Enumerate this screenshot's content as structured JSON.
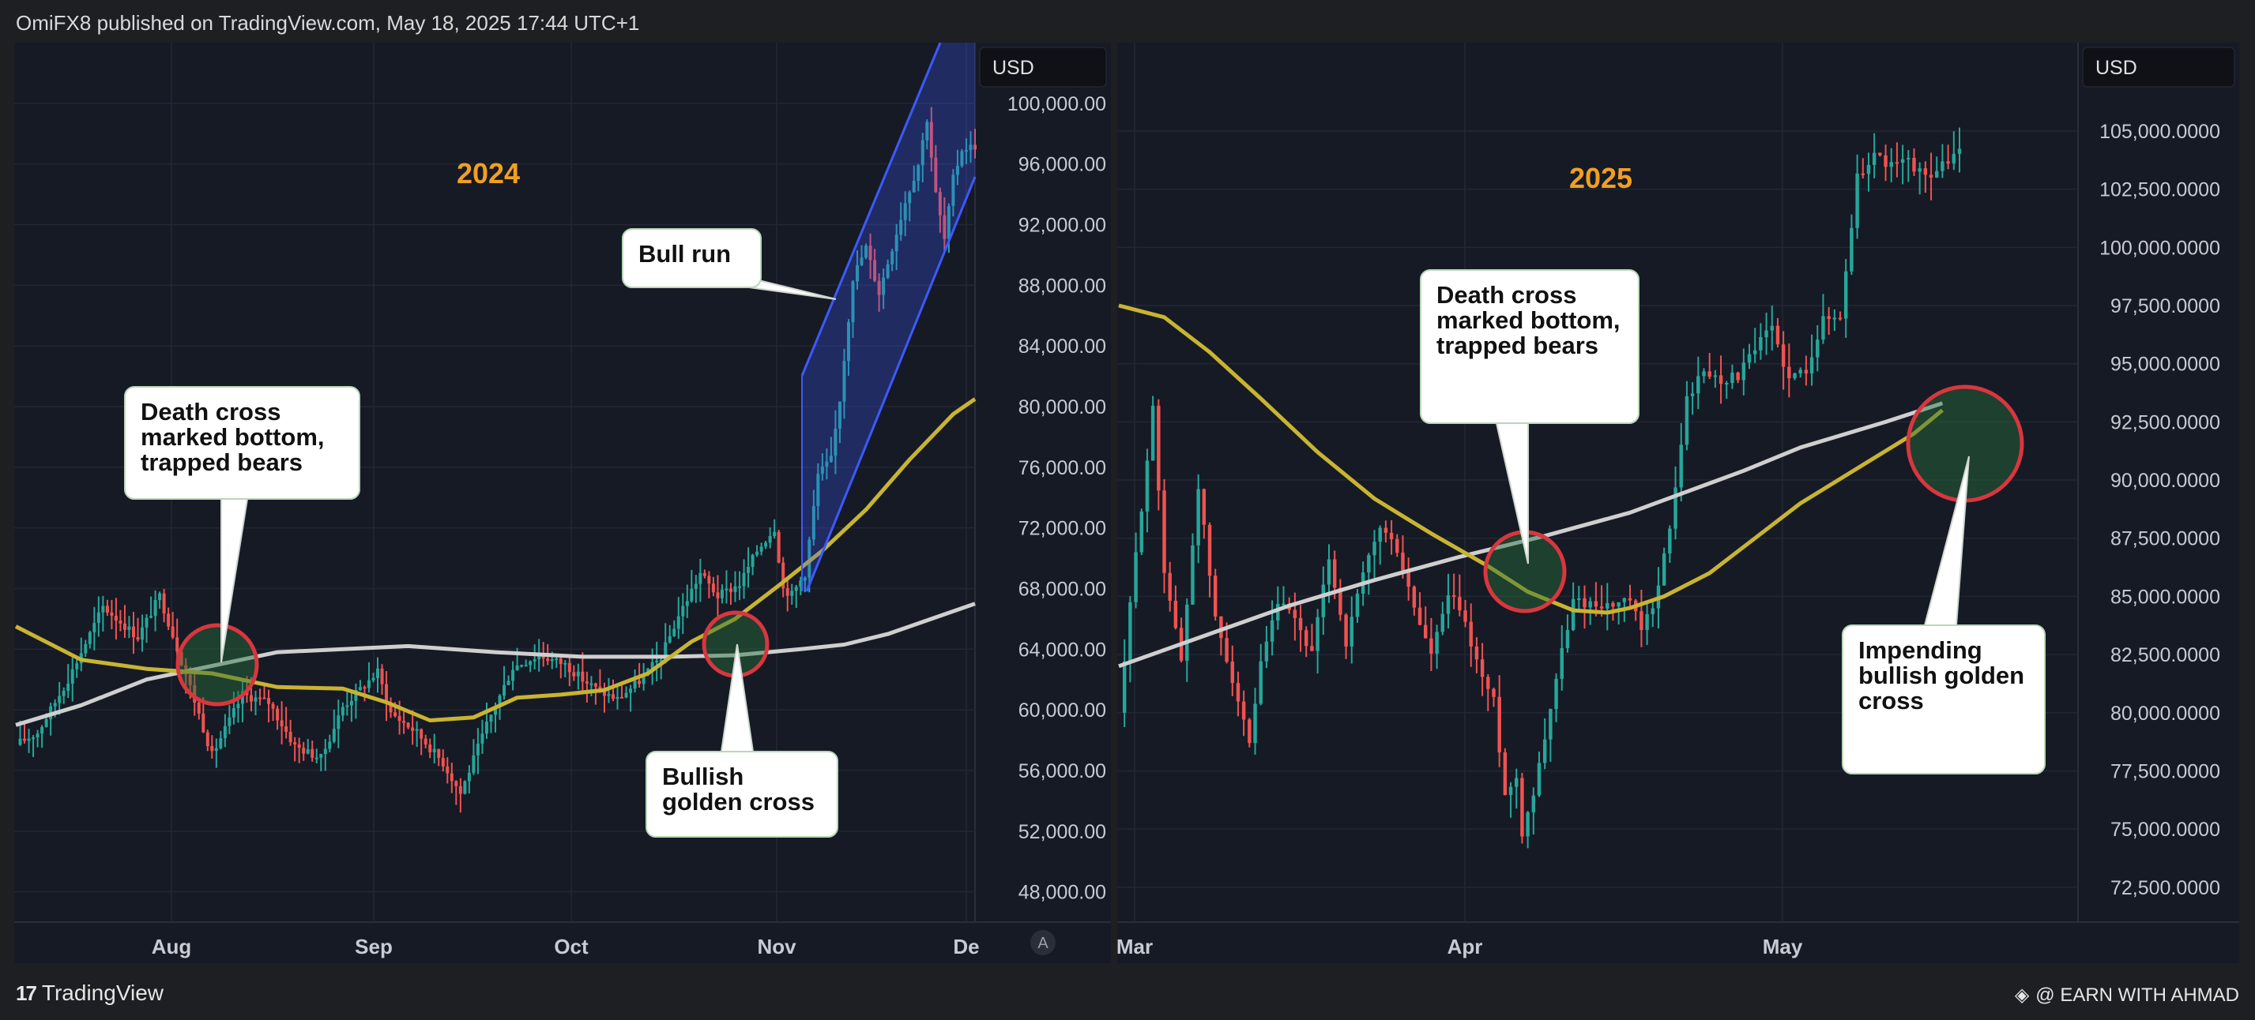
{
  "header": {
    "text": "OmiFX8 published on TradingView.com, May 18, 2025 17:44 UTC+1"
  },
  "footer": {
    "logo_text": "TradingView",
    "credit": "@ EARN WITH AHMAD"
  },
  "colors": {
    "bg": "#1e1f22",
    "plot_bg": "#161a25",
    "up": "#26a69a",
    "down": "#ef5350",
    "ma50": "#c8b432",
    "ma200": "#cfcfcf",
    "year": "#f0a020",
    "channel": "#3d5afe",
    "circle": "#d9363e"
  },
  "chart_data": [
    {
      "type": "candlestick",
      "year_label": "2024",
      "currency": "USD",
      "y_ticks": [
        "48,000.00",
        "52,000.00",
        "56,000.00",
        "60,000.00",
        "64,000.00",
        "68,000.00",
        "72,000.00",
        "76,000.00",
        "80,000.00",
        "84,000.00",
        "88,000.00",
        "92,000.00",
        "96,000.00",
        "100,000.00"
      ],
      "ylim": [
        46000,
        104000
      ],
      "x_ticks": [
        "Aug",
        "Sep",
        "Oct",
        "Nov",
        "De"
      ],
      "scale_button": "A",
      "close_path": [
        [
          0,
          57700
        ],
        [
          5,
          58500
        ],
        [
          12,
          62000
        ],
        [
          20,
          66800
        ],
        [
          28,
          64800
        ],
        [
          33,
          67500
        ],
        [
          40,
          61500
        ],
        [
          45,
          57000
        ],
        [
          52,
          61000
        ],
        [
          58,
          60500
        ],
        [
          64,
          57600
        ],
        [
          70,
          56800
        ],
        [
          75,
          60200
        ],
        [
          83,
          62500
        ],
        [
          86,
          59800
        ],
        [
          92,
          58500
        ],
        [
          98,
          56500
        ],
        [
          102,
          54500
        ],
        [
          108,
          59000
        ],
        [
          114,
          62800
        ],
        [
          120,
          63600
        ],
        [
          126,
          63000
        ],
        [
          130,
          62000
        ],
        [
          134,
          61200
        ],
        [
          138,
          60700
        ],
        [
          143,
          61900
        ],
        [
          148,
          63500
        ],
        [
          152,
          66200
        ],
        [
          157,
          69000
        ],
        [
          161,
          67500
        ],
        [
          166,
          68300
        ],
        [
          170,
          70500
        ],
        [
          174,
          72000
        ],
        [
          176,
          68000
        ],
        [
          178,
          67600
        ],
        [
          181,
          69000
        ],
        [
          184,
          75500
        ],
        [
          187,
          76500
        ],
        [
          189,
          80500
        ],
        [
          192,
          88500
        ],
        [
          195,
          90500
        ],
        [
          198,
          87500
        ],
        [
          201,
          90500
        ],
        [
          204,
          93500
        ],
        [
          207,
          96000
        ],
        [
          209,
          99000
        ],
        [
          211,
          94000
        ],
        [
          213,
          91000
        ],
        [
          215,
          95000
        ],
        [
          217,
          97000
        ],
        [
          220,
          97200
        ]
      ],
      "ma50": [
        [
          0,
          65500
        ],
        [
          15,
          63300
        ],
        [
          30,
          62700
        ],
        [
          45,
          62400
        ],
        [
          60,
          61500
        ],
        [
          75,
          61400
        ],
        [
          85,
          60500
        ],
        [
          95,
          59300
        ],
        [
          105,
          59500
        ],
        [
          115,
          60800
        ],
        [
          125,
          61000
        ],
        [
          135,
          61300
        ],
        [
          145,
          62400
        ],
        [
          155,
          64500
        ],
        [
          165,
          66000
        ],
        [
          175,
          68200
        ],
        [
          185,
          70500
        ],
        [
          195,
          73200
        ],
        [
          205,
          76500
        ],
        [
          215,
          79500
        ],
        [
          220,
          80500
        ]
      ],
      "ma200": [
        [
          0,
          59000
        ],
        [
          15,
          60300
        ],
        [
          30,
          62000
        ],
        [
          45,
          62900
        ],
        [
          60,
          63800
        ],
        [
          75,
          64000
        ],
        [
          90,
          64200
        ],
        [
          110,
          63800
        ],
        [
          130,
          63500
        ],
        [
          150,
          63500
        ],
        [
          165,
          63600
        ],
        [
          180,
          64000
        ],
        [
          190,
          64300
        ],
        [
          200,
          65000
        ],
        [
          210,
          66000
        ],
        [
          220,
          67000
        ]
      ],
      "callouts": [
        {
          "lines": [
            "Death cross",
            "marked bottom,",
            "trapped bears"
          ]
        },
        {
          "lines": [
            "Bull run"
          ]
        },
        {
          "lines": [
            "Bullish",
            "golden cross"
          ]
        }
      ]
    },
    {
      "type": "candlestick",
      "year_label": "2025",
      "currency": "USD",
      "y_ticks": [
        "72,500.0000",
        "75,000.0000",
        "77,500.0000",
        "80,000.0000",
        "82,500.0000",
        "85,000.0000",
        "87,500.0000",
        "90,000.0000",
        "92,500.0000",
        "95,000.0000",
        "97,500.0000",
        "100,000.0000",
        "102,500.0000",
        "105,000.0000"
      ],
      "ylim": [
        71000,
        108800
      ],
      "x_ticks": [
        "Mar",
        "Apr",
        "May"
      ],
      "close_path": [
        [
          0,
          80000
        ],
        [
          3,
          86800
        ],
        [
          6,
          93000
        ],
        [
          8,
          86200
        ],
        [
          11,
          82200
        ],
        [
          14,
          89800
        ],
        [
          17,
          84000
        ],
        [
          20,
          81500
        ],
        [
          23,
          78500
        ],
        [
          25,
          82000
        ],
        [
          28,
          84700
        ],
        [
          31,
          84000
        ],
        [
          34,
          82500
        ],
        [
          37,
          86700
        ],
        [
          40,
          83000
        ],
        [
          43,
          85900
        ],
        [
          46,
          88000
        ],
        [
          49,
          87000
        ],
        [
          52,
          84500
        ],
        [
          55,
          82500
        ],
        [
          58,
          85000
        ],
        [
          60,
          84500
        ],
        [
          62,
          83000
        ],
        [
          64,
          81500
        ],
        [
          66,
          80500
        ],
        [
          68,
          76500
        ],
        [
          70,
          77200
        ],
        [
          71,
          74900
        ],
        [
          73,
          76600
        ],
        [
          75,
          79000
        ],
        [
          77,
          81500
        ],
        [
          80,
          84800
        ],
        [
          83,
          84700
        ],
        [
          87,
          84600
        ],
        [
          90,
          84800
        ],
        [
          92,
          83500
        ],
        [
          94,
          84600
        ],
        [
          97,
          87800
        ],
        [
          100,
          93500
        ],
        [
          103,
          94700
        ],
        [
          106,
          94300
        ],
        [
          109,
          94500
        ],
        [
          112,
          95600
        ],
        [
          115,
          96600
        ],
        [
          118,
          94300
        ],
        [
          121,
          94800
        ],
        [
          124,
          96900
        ],
        [
          127,
          97000
        ],
        [
          130,
          103000
        ],
        [
          133,
          104000
        ],
        [
          136,
          103500
        ],
        [
          139,
          103700
        ],
        [
          142,
          103000
        ],
        [
          145,
          103500
        ],
        [
          148,
          104200
        ]
      ],
      "ma50": [
        [
          0,
          97500
        ],
        [
          8,
          97000
        ],
        [
          16,
          95500
        ],
        [
          25,
          93500
        ],
        [
          35,
          91200
        ],
        [
          45,
          89200
        ],
        [
          55,
          87700
        ],
        [
          65,
          86300
        ],
        [
          72,
          85200
        ],
        [
          80,
          84400
        ],
        [
          86,
          84300
        ],
        [
          90,
          84500
        ],
        [
          96,
          85000
        ],
        [
          104,
          86000
        ],
        [
          112,
          87500
        ],
        [
          120,
          89000
        ],
        [
          130,
          90500
        ],
        [
          140,
          92000
        ],
        [
          145,
          93000
        ]
      ],
      "ma200": [
        [
          0,
          82000
        ],
        [
          15,
          83300
        ],
        [
          30,
          84600
        ],
        [
          45,
          85700
        ],
        [
          60,
          86700
        ],
        [
          75,
          87600
        ],
        [
          90,
          88600
        ],
        [
          100,
          89500
        ],
        [
          110,
          90400
        ],
        [
          120,
          91400
        ],
        [
          135,
          92500
        ],
        [
          145,
          93300
        ]
      ],
      "callouts": [
        {
          "lines": [
            "Death cross",
            "marked bottom,",
            "trapped bears"
          ]
        },
        {
          "lines": [
            "Impending",
            "bullish golden",
            "cross"
          ]
        }
      ]
    }
  ]
}
